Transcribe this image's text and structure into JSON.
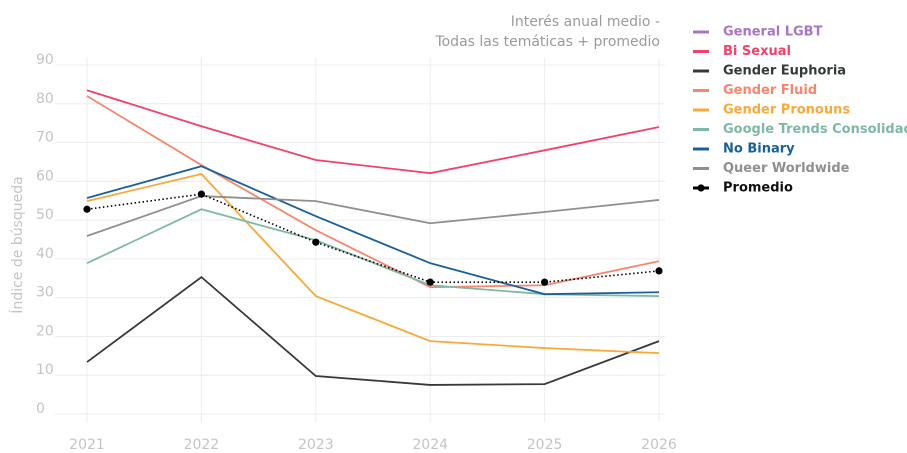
{
  "chart_data": {
    "type": "line",
    "title": [
      "Interés anual medio -",
      "Todas las temáticas + promedio"
    ],
    "y_label": "Índice  de búsqueda",
    "categories": [
      "2021",
      "2022",
      "2023",
      "2024",
      "2025",
      "2026"
    ],
    "ylim": [
      0,
      90
    ],
    "yticks": [
      0,
      10,
      20,
      30,
      40,
      50,
      60,
      70,
      80,
      90
    ],
    "grid": true,
    "legend": "right",
    "series": [
      {
        "name": "General LGBT",
        "color": "#a874c4",
        "values": [
          null,
          null,
          null,
          null,
          null,
          null
        ]
      },
      {
        "name": "Bi Sexual",
        "color": "#f2416b",
        "values": [
          83.5,
          74.2,
          65.5,
          62.1,
          68,
          74
        ]
      },
      {
        "name": "Gender Euphoria",
        "color": "#353b3b",
        "values": [
          13.4,
          35.3,
          9.8,
          7.5,
          7.7,
          18.8
        ]
      },
      {
        "name": "Gender Fluid",
        "color": "#f7866f",
        "values": [
          82,
          64.2,
          47.4,
          32.7,
          33.2,
          39.4
        ]
      },
      {
        "name": "Gender Pronouns",
        "color": "#f9a93a",
        "values": [
          54.9,
          61.9,
          30.4,
          18.8,
          17,
          15.7
        ]
      },
      {
        "name": "Google Trends Consolidado",
        "color": "#7fb9a3",
        "values": [
          38.9,
          52.8,
          44.8,
          33.2,
          30.9,
          30.4
        ]
      },
      {
        "name": "No Binary",
        "color": "#19609c",
        "values": [
          55.7,
          63.9,
          51,
          38.9,
          30.9,
          31.4
        ]
      },
      {
        "name": "Queer Worldwide",
        "color": "#8f8f8f",
        "values": [
          45.9,
          56.2,
          54.9,
          49.2,
          52.1,
          55.2
        ]
      },
      {
        "name": "Promedio",
        "color": "#000000",
        "dotted": true,
        "markers": true,
        "values": [
          52.8,
          56.7,
          44.3,
          34,
          34,
          36.9
        ]
      }
    ]
  }
}
